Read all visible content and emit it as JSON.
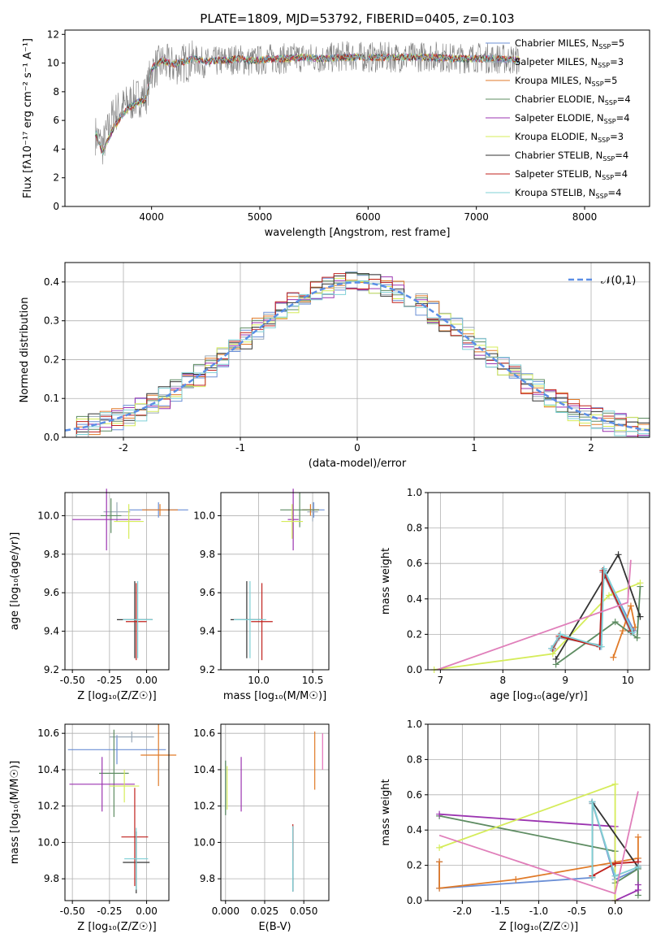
{
  "figure": {
    "title": "PLATE=1809, MJD=53792, FIBERID=0405, z=0.103"
  },
  "models": [
    {
      "name": "Chabrier MILES",
      "nssp": "5",
      "color": "#6b8fd6"
    },
    {
      "name": "Salpeter MILES",
      "nssp": "3",
      "color": "#9aa9b8"
    },
    {
      "name": "Kroupa MILES",
      "nssp": "5",
      "color": "#e07a28"
    },
    {
      "name": "Chabrier ELODIE",
      "nssp": "4",
      "color": "#5e8c62"
    },
    {
      "name": "Salpeter ELODIE",
      "nssp": "4",
      "color": "#9b34b0"
    },
    {
      "name": "Kroupa ELODIE",
      "nssp": "3",
      "color": "#d5ec5a"
    },
    {
      "name": "Chabrier STELIB",
      "nssp": "4",
      "color": "#333333"
    },
    {
      "name": "Salpeter STELIB",
      "nssp": "4",
      "color": "#c0211c"
    },
    {
      "name": "Kroupa STELIB",
      "nssp": "4",
      "color": "#7fd0d6"
    }
  ],
  "chart_data": [
    {
      "type": "line",
      "id": "spectrum",
      "title": "PLATE=1809, MJD=53792, FIBERID=0405, z=0.103",
      "xlabel": "wavelength [Angstrom, rest frame]",
      "ylabel": "Flux [fλ10⁻¹⁷ erg cm⁻² s⁻¹ A⁻¹]",
      "xlim": [
        3200,
        8600
      ],
      "ylim": [
        0,
        12.3
      ],
      "xticks": [
        4000,
        5000,
        6000,
        7000,
        8000
      ],
      "yticks": [
        0,
        2,
        4,
        6,
        8,
        10,
        12
      ],
      "legend": "top-right",
      "data_series": {
        "name": "data",
        "color": "#808080",
        "x": [
          3480,
          3550,
          3650,
          3750,
          3850,
          3950,
          4000,
          4100,
          4200,
          4300,
          4400,
          4500,
          4600,
          4700,
          4800,
          4900,
          5000,
          5100,
          5200,
          5400,
          5600,
          5800,
          6000,
          6200,
          6400,
          6600,
          6800,
          7000,
          7200,
          7400
        ],
        "y": [
          5.0,
          4.2,
          6.5,
          7.0,
          7.5,
          7.8,
          9.5,
          10.0,
          9.8,
          10.0,
          10.2,
          10.0,
          10.1,
          10.2,
          10.3,
          10.1,
          10.2,
          10.3,
          10.3,
          10.4,
          10.3,
          10.5,
          10.4,
          10.4,
          10.4,
          10.5,
          10.3,
          10.4,
          10.3,
          10.2
        ]
      },
      "model_x": [
        3480,
        3550,
        3650,
        3750,
        3850,
        3950,
        4000,
        4100,
        4200,
        4300,
        4400,
        4500,
        4600,
        4700,
        4800,
        4900,
        5000,
        5100,
        5200,
        5400,
        5600,
        5800,
        6000,
        6200,
        6400,
        6600,
        6800,
        7000,
        7200,
        7400
      ],
      "model_y": [
        5.2,
        3.8,
        5.5,
        6.6,
        7.2,
        7.5,
        9.6,
        10.2,
        9.9,
        10.1,
        10.3,
        10.1,
        10.2,
        10.2,
        10.3,
        10.2,
        10.2,
        10.3,
        10.3,
        10.4,
        10.3,
        10.4,
        10.4,
        10.4,
        10.4,
        10.4,
        10.3,
        10.3,
        10.3,
        10.2
      ]
    },
    {
      "type": "line",
      "id": "residuals",
      "xlabel": "(data-model)/error",
      "ylabel": "Normed distribution",
      "xlim": [
        -2.5,
        2.5
      ],
      "ylim": [
        0,
        0.45
      ],
      "xticks": [
        -2,
        -1,
        0,
        1,
        2
      ],
      "yticks": [
        0.0,
        0.1,
        0.2,
        0.3,
        0.4
      ],
      "grid": true,
      "legend": "top-right",
      "reference": {
        "name": "𝒩(0,1)",
        "color": "#5a8ee6",
        "dashed": true
      },
      "bin_width": 0.1
    },
    {
      "type": "scatter",
      "id": "age-vs-z",
      "xlabel": "Z [log₁₀(Z/Z☉)]",
      "ylabel": "age  [log₁₀(age/yr)]",
      "xlim": [
        -0.55,
        0.15
      ],
      "ylim": [
        9.2,
        10.12
      ],
      "xticks": [
        -0.5,
        -0.25,
        0.0
      ],
      "yticks": [
        9.2,
        9.4,
        9.6,
        9.8,
        10.0
      ],
      "grid": true,
      "points": [
        {
          "x": 0.08,
          "y": 10.03,
          "xerr": 0.2,
          "yerr": 0.04
        },
        {
          "x": -0.2,
          "y": 10.02,
          "xerr": 0.09,
          "yerr": 0.05
        },
        {
          "x": 0.09,
          "y": 10.03,
          "xerr": 0.12,
          "yerr": 0.03
        },
        {
          "x": -0.24,
          "y": 10.0,
          "xerr": 0.07,
          "yerr": 0.09
        },
        {
          "x": -0.27,
          "y": 9.98,
          "xerr": 0.23,
          "yerr": 0.16
        },
        {
          "x": -0.12,
          "y": 9.97,
          "xerr": 0.1,
          "yerr": 0.09
        },
        {
          "x": -0.08,
          "y": 9.46,
          "xerr": 0.12,
          "yerr": 0.2
        },
        {
          "x": -0.07,
          "y": 9.45,
          "xerr": 0.07,
          "yerr": 0.2
        },
        {
          "x": -0.06,
          "y": 9.46,
          "xerr": 0.1,
          "yerr": 0.2
        }
      ]
    },
    {
      "type": "scatter",
      "id": "age-vs-mass",
      "xlabel": "mass [log₁₀(M/M☉)]",
      "ylabel": "",
      "xlim": [
        9.65,
        10.65
      ],
      "ylim": [
        9.2,
        10.12
      ],
      "xticks": [
        10.0,
        10.5
      ],
      "yticks": [
        9.2,
        9.4,
        9.6,
        9.8,
        10.0
      ],
      "grid": true,
      "points": [
        {
          "x": 10.51,
          "y": 10.03,
          "xerr": 0.1,
          "yerr": 0.04
        },
        {
          "x": 10.5,
          "y": 10.02,
          "xerr": 0.05,
          "yerr": 0.05
        },
        {
          "x": 10.48,
          "y": 10.03,
          "xerr": 0.08,
          "yerr": 0.03
        },
        {
          "x": 10.38,
          "y": 10.03,
          "xerr": 0.18,
          "yerr": 0.09
        },
        {
          "x": 10.32,
          "y": 9.98,
          "xerr": 0.05,
          "yerr": 0.16
        },
        {
          "x": 10.31,
          "y": 9.97,
          "xerr": 0.1,
          "yerr": 0.09
        },
        {
          "x": 9.89,
          "y": 9.46,
          "xerr": 0.15,
          "yerr": 0.2
        },
        {
          "x": 10.03,
          "y": 9.45,
          "xerr": 0.1,
          "yerr": 0.2
        },
        {
          "x": 9.92,
          "y": 9.46,
          "xerr": 0.15,
          "yerr": 0.2
        }
      ]
    },
    {
      "type": "line",
      "id": "weight-vs-age",
      "xlabel": "age  [log₁₀(age/yr)]",
      "ylabel": "mass weight",
      "xlim": [
        6.8,
        10.35
      ],
      "ylim": [
        0,
        1
      ],
      "xticks": [
        7,
        8,
        9,
        10
      ],
      "yticks": [
        0.0,
        0.2,
        0.4,
        0.6,
        0.8,
        1.0
      ],
      "grid": true,
      "series": [
        {
          "x": [
            8.78,
            8.9,
            9.56,
            9.62,
            10.1
          ],
          "y": [
            0.12,
            0.19,
            0.13,
            0.56,
            0.22
          ]
        },
        {
          "x": [
            8.8,
            8.9,
            9.55,
            9.6,
            10.05
          ],
          "y": [
            0.11,
            0.18,
            0.14,
            0.55,
            0.21
          ]
        },
        {
          "x": [
            9.77,
            9.92,
            10.05,
            10.12
          ],
          "y": [
            0.07,
            0.22,
            0.36,
            0.24
          ]
        },
        {
          "x": [
            8.85,
            9.8,
            10.15,
            10.2
          ],
          "y": [
            0.03,
            0.27,
            0.18,
            0.47
          ]
        },
        {
          "x": 6.9,
          "y": 0
        },
        {
          "x": [
            6.9,
            8.8,
            9.7,
            10.2
          ],
          "y": [
            0.0,
            0.09,
            0.42,
            0.49
          ]
        },
        {
          "x": [
            8.85,
            9.85,
            10.2
          ],
          "y": [
            0.06,
            0.65,
            0.3
          ]
        },
        {
          "x": [
            8.8,
            8.9,
            9.55,
            9.6,
            10.05
          ],
          "y": [
            0.12,
            0.19,
            0.13,
            0.56,
            0.22
          ]
        },
        {
          "x": [
            8.78,
            8.92,
            9.58,
            9.62,
            10.08
          ],
          "y": [
            0.12,
            0.2,
            0.13,
            0.57,
            0.21
          ]
        }
      ],
      "extra_series": {
        "x": [
          6.95,
          10.0,
          10.05
        ],
        "y": [
          0.0,
          0.38,
          0.62
        ]
      }
    },
    {
      "type": "scatter",
      "id": "mass-vs-z",
      "xlabel": "Z [log₁₀(Z/Z☉)]",
      "ylabel": "mass [log₁₀(M/M☉)]",
      "xlim": [
        -0.55,
        0.15
      ],
      "ylim": [
        9.68,
        10.65
      ],
      "xticks": [
        -0.5,
        -0.25,
        0.0
      ],
      "yticks": [
        9.8,
        10.0,
        10.2,
        10.4,
        10.6
      ],
      "grid": true,
      "points": [
        {
          "x": -0.2,
          "y": 10.51,
          "xerr": 0.33,
          "yerr": 0.08
        },
        {
          "x": -0.1,
          "y": 10.58,
          "xerr": 0.15,
          "yerr": 0.03
        },
        {
          "x": 0.08,
          "y": 10.48,
          "xerr": 0.12,
          "yerr": 0.17
        },
        {
          "x": -0.22,
          "y": 10.38,
          "xerr": 0.1,
          "yerr": 0.24
        },
        {
          "x": -0.3,
          "y": 10.32,
          "xerr": 0.22,
          "yerr": 0.15
        },
        {
          "x": -0.15,
          "y": 10.31,
          "xerr": 0.1,
          "yerr": 0.09
        },
        {
          "x": -0.07,
          "y": 9.89,
          "xerr": 0.09,
          "yerr": 0.17
        },
        {
          "x": -0.08,
          "y": 10.03,
          "xerr": 0.09,
          "yerr": 0.27
        },
        {
          "x": -0.07,
          "y": 9.91,
          "xerr": 0.08,
          "yerr": 0.17
        }
      ]
    },
    {
      "type": "scatter",
      "id": "mass-vs-ebv",
      "xlabel": "E(B-V)",
      "ylabel": "",
      "xlim": [
        -0.003,
        0.066
      ],
      "ylim": [
        9.68,
        10.65
      ],
      "xticks": [
        0.0,
        0.025,
        0.05
      ],
      "yticks": [
        9.8,
        10.0,
        10.2,
        10.4,
        10.6
      ],
      "grid": true,
      "points": [
        {
          "x": 0.043,
          "y": 9.9,
          "yerr": 0.17
        },
        {
          "x": 0.0,
          "y": 10.3,
          "yerr": 0.15
        },
        {
          "x": 0.057,
          "y": 10.45,
          "yerr": 0.16
        },
        {
          "x": 0.0,
          "y": 10.3,
          "yerr": 0.15
        },
        {
          "x": 0.01,
          "y": 10.32,
          "yerr": 0.15
        },
        {
          "x": 0.001,
          "y": 10.3,
          "yerr": 0.12
        },
        {
          "x": 0.043,
          "y": 9.91,
          "yerr": 0.18
        },
        {
          "x": 0.043,
          "y": 10.0,
          "yerr": 0.1
        },
        {
          "x": 0.043,
          "y": 9.91,
          "yerr": 0.18
        }
      ],
      "extra": {
        "x": 0.062,
        "y": 10.5,
        "yerr": 0.1
      }
    },
    {
      "type": "line",
      "id": "weight-vs-z",
      "xlabel": "Z [log₁₀(Z/Z☉)]",
      "ylabel": "mass weight",
      "xlim": [
        -2.45,
        0.45
      ],
      "ylim": [
        0,
        1
      ],
      "xticks": [
        -2.0,
        -1.5,
        -1.0,
        -0.5,
        0.0
      ],
      "yticks": [
        0.0,
        0.2,
        0.4,
        0.6,
        0.8,
        1.0
      ],
      "grid": true,
      "series": [
        {
          "x": [
            -2.3,
            -2.3,
            -0.3,
            -0.3,
            0.0,
            0.3,
            0.3
          ],
          "y": [
            0.22,
            0.07,
            0.13,
            0.56,
            0.12,
            0.18,
            0.24
          ]
        },
        {
          "x": [
            -0.3,
            -0.3,
            0.0,
            0.3,
            0.3
          ],
          "y": [
            0.13,
            0.55,
            0.14,
            0.19,
            0.2
          ]
        },
        {
          "x": [
            -2.3,
            -2.3,
            -1.3,
            0.3,
            0.3
          ],
          "y": [
            0.22,
            0.07,
            0.12,
            0.24,
            0.36
          ]
        },
        {
          "x": [
            -2.3,
            0.0,
            0.0,
            0.3,
            0.3
          ],
          "y": [
            0.48,
            0.28,
            0.1,
            0.18,
            0.03
          ]
        },
        {
          "x": [
            -2.3,
            0.0,
            0.0,
            0.3,
            0.3
          ],
          "y": [
            0.49,
            0.42,
            0.0,
            0.06,
            0.09
          ]
        },
        {
          "x": [
            -2.3,
            0.0,
            0.0
          ],
          "y": [
            0.3,
            0.66,
            0.0
          ]
        },
        {
          "x": [
            -0.3,
            -0.3,
            0.3
          ],
          "y": [
            0.13,
            0.56,
            0.19
          ]
        },
        {
          "x": [
            -0.3,
            0.0,
            0.3
          ],
          "y": [
            0.14,
            0.21,
            0.22
          ]
        },
        {
          "x": [
            -0.3,
            -0.3,
            0.0,
            0.3
          ],
          "y": [
            0.13,
            0.56,
            0.14,
            0.19
          ]
        }
      ],
      "extra_series": {
        "x": [
          -2.3,
          0.0,
          0.3
        ],
        "y": [
          0.37,
          0.04,
          0.62
        ]
      }
    }
  ]
}
